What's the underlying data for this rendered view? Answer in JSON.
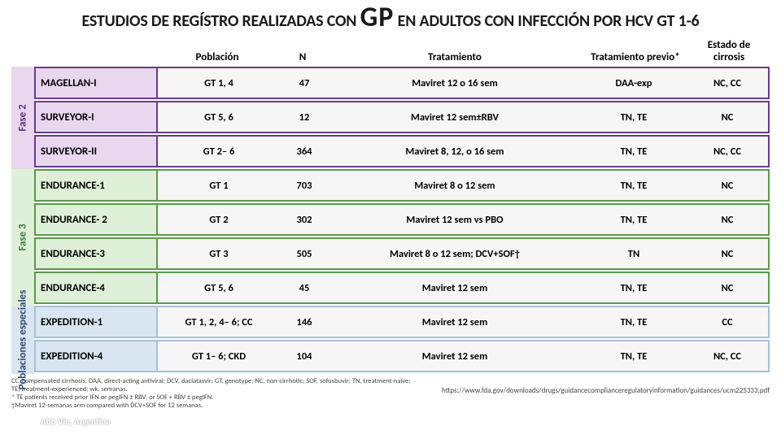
{
  "title_parts": {
    "pre": "ESTUDIOS DE REGÍSTRO REALIZADAS CON ",
    "gp": "GP",
    "post": " EN ADULTOS CON INFECCIÓN POR HCV GT 1-6"
  },
  "headers": {
    "poblacion": "Población",
    "n": "N",
    "tratamiento": "Tratamiento",
    "previo": "Tratamiento previo*",
    "cirrosis": "Estado de cirrosis"
  },
  "rails": {
    "fase2": "Fase 2",
    "fase3": "Fase 3",
    "especiales": "Poblaciones especiales"
  },
  "rows": [
    {
      "group": "purple",
      "study": "MAGELLAN-I",
      "pob": "GT 1, 4",
      "n": "47",
      "tto": "Maviret 12 o 16  sem",
      "prev": "DAA-exp",
      "cir": "NC, CC"
    },
    {
      "group": "purple",
      "study": "SURVEYOR-I",
      "pob": "GT 5, 6",
      "n": "12",
      "tto": "Maviret 12 sem±RBV",
      "prev": "TN, TE",
      "cir": "NC"
    },
    {
      "group": "purple",
      "study": "SURVEYOR-II",
      "pob": "GT 2– 6",
      "n": "364",
      "tto": "Maviret 8, 12, o 16 sem",
      "prev": "TN, TE",
      "cir": "NC, CC"
    },
    {
      "group": "green",
      "study": "ENDURANCE-1",
      "pob": "GT 1",
      "n": "703",
      "tto": "Maviret 8 o 12 sem",
      "prev": "TN, TE",
      "cir": "NC"
    },
    {
      "group": "green",
      "study": "ENDURANCE- 2",
      "pob": "GT 2",
      "n": "302",
      "tto": "Maviret 12 sem vs PBO",
      "prev": "TN, TE",
      "cir": "NC"
    },
    {
      "group": "green",
      "study": "ENDURANCE-3",
      "pob": "GT 3",
      "n": "505",
      "tto": "Maviret 8 o 12 sem; DCV+SOF†",
      "prev": "TN",
      "cir": "NC"
    },
    {
      "group": "green",
      "study": "ENDURANCE-4",
      "pob": "GT 5, 6",
      "n": "45",
      "tto": "Maviret 12 sem",
      "prev": "TN, TE",
      "cir": "NC"
    },
    {
      "group": "blue",
      "study": "EXPEDITION-1",
      "pob": "GT 1, 2, 4– 6; CC",
      "n": "146",
      "tto": "Maviret 12 sem",
      "prev": "TN, TE",
      "cir": "CC"
    },
    {
      "group": "blue",
      "study": "EXPEDITION-4",
      "pob": "GT 1– 6; CKD",
      "n": "104",
      "tto": "Maviret 12 sem",
      "prev": "TN, TE",
      "cir": "NC, CC"
    }
  ],
  "footnote_left": "CC, compensated cirrhosis; DAA, direct-acting antiviral; DCV, daclatasvir; GT, genotype; NC, non-cirrhotic; SOF, sofosbuvir; TN, treatment-naïve; TE, treatment-experienced; wk, semanas.\n* TE patients received prior IFN or pegIFN ± RBV; or SOF + RBV ± pegIFN.\n†Maviret 12-semanas arm compared with DCV+SOF for 12 semanas.",
  "footnote_right": "https://www.fda.gov/downloads/drugs/guidancecomplianceregulatoryinformation/guidances/ucm225333.pdf",
  "attribution": "Abb Vie, Argentina",
  "colors": {
    "purple_border": "#6a3a92",
    "purple_fill": "#e9d7f0",
    "green_border": "#5a9a4a",
    "green_fill": "#dff0d8",
    "blue_border": "#a5c0da",
    "blue_fill": "#d9e6f2"
  }
}
